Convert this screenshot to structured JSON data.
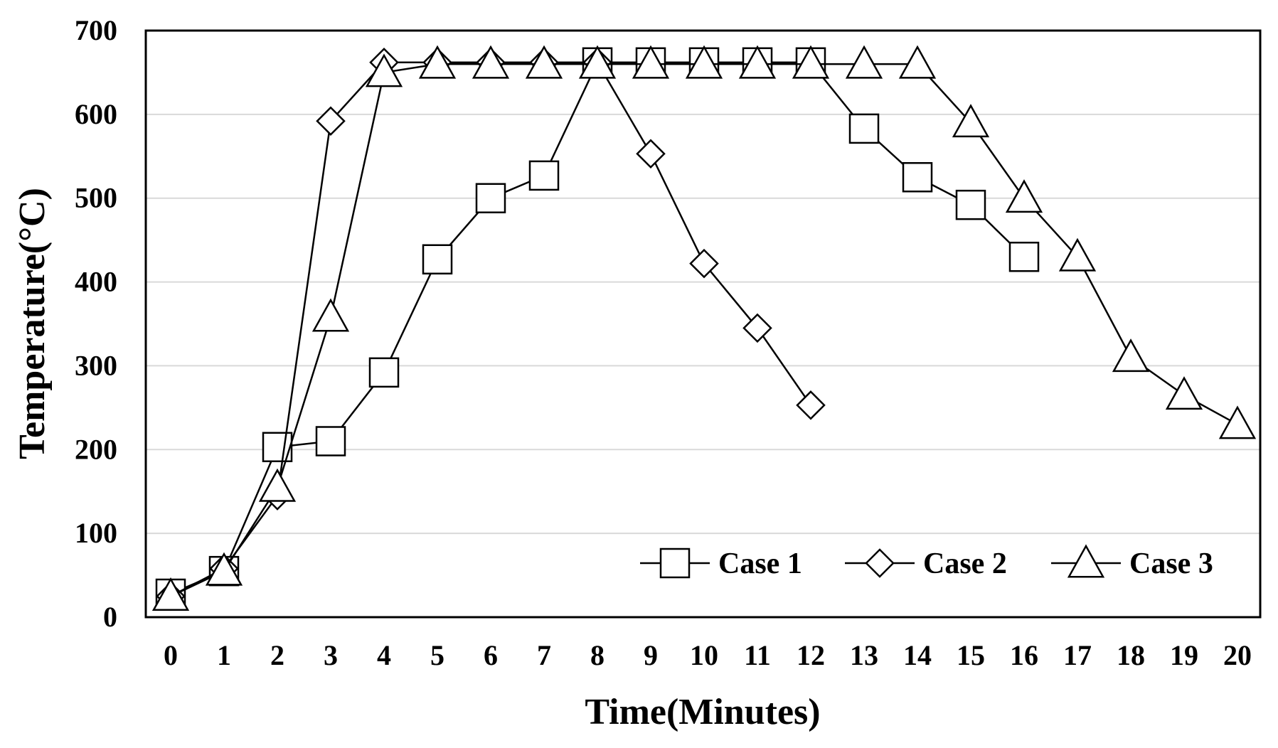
{
  "chart_data": {
    "type": "line",
    "title": "",
    "xlabel": "Time(Minutes)",
    "ylabel": "Temperature(°C)",
    "xlim": [
      0,
      20
    ],
    "ylim": [
      0,
      700
    ],
    "xticks": [
      "0",
      "1",
      "2",
      "3",
      "4",
      "5",
      "6",
      "7",
      "8",
      "9",
      "10",
      "11",
      "12",
      "13",
      "14",
      "15",
      "16",
      "17",
      "18",
      "19",
      "20"
    ],
    "yticks": [
      "0",
      "100",
      "200",
      "300",
      "400",
      "500",
      "600",
      "700"
    ],
    "grid": "horizontal",
    "legend_position": "bottom-right",
    "series": [
      {
        "name": "Case 1",
        "marker": "square",
        "x": [
          0,
          1,
          2,
          3,
          4,
          5,
          6,
          7,
          8,
          9,
          10,
          11,
          12,
          13,
          14,
          15,
          16
        ],
        "y": [
          28,
          55,
          203,
          210,
          292,
          427,
          500,
          527,
          662,
          662,
          662,
          662,
          662,
          583,
          525,
          492,
          430
        ]
      },
      {
        "name": "Case 2",
        "marker": "diamond",
        "x": [
          0,
          1,
          2,
          3,
          4,
          5,
          6,
          7,
          8,
          9,
          10,
          11,
          12
        ],
        "y": [
          25,
          58,
          145,
          592,
          662,
          662,
          662,
          662,
          662,
          553,
          422,
          345,
          253
        ]
      },
      {
        "name": "Case 3",
        "marker": "triangle",
        "x": [
          0,
          1,
          2,
          3,
          4,
          5,
          6,
          7,
          8,
          9,
          10,
          11,
          12,
          13,
          14,
          15,
          16,
          17,
          18,
          19,
          20
        ],
        "y": [
          25,
          55,
          155,
          358,
          650,
          660,
          660,
          660,
          660,
          660,
          660,
          660,
          660,
          660,
          660,
          590,
          500,
          430,
          310,
          265,
          230
        ]
      }
    ]
  }
}
